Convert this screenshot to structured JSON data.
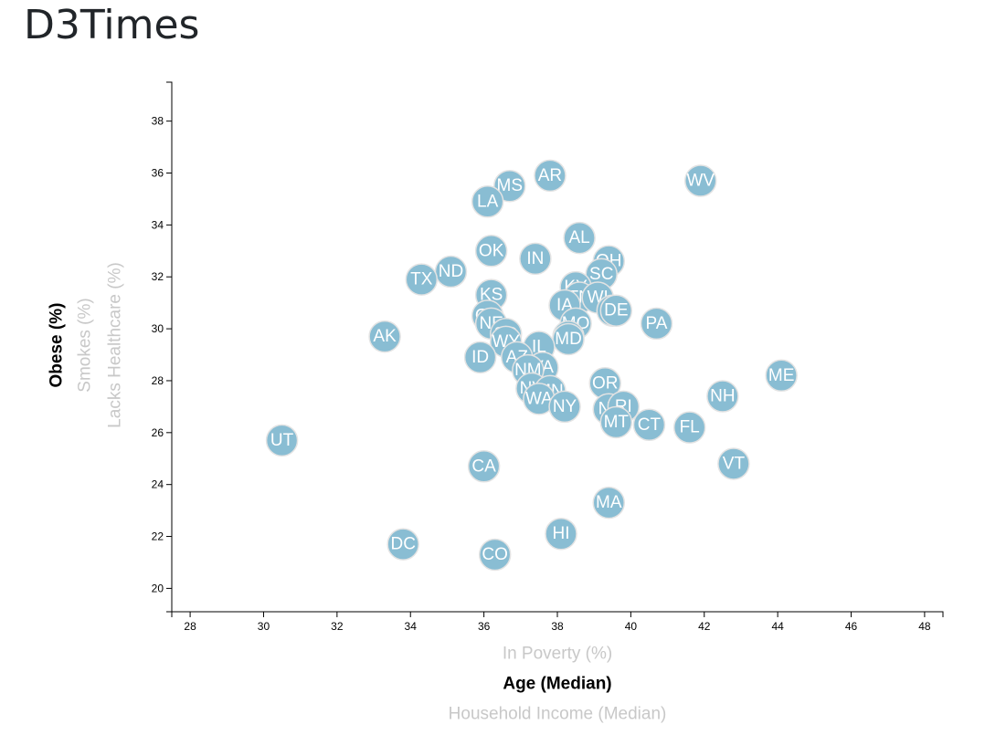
{
  "header": {
    "title": "D3Times"
  },
  "colors": {
    "circle": "#89bdd3",
    "circle_stroke": "#e3e3e3",
    "active_label": "#000000",
    "inactive_label": "#c8c8c8"
  },
  "chart_data": {
    "type": "scatter",
    "title": "",
    "x_labels": [
      {
        "text": "In Poverty (%)",
        "active": false
      },
      {
        "text": "Age (Median)",
        "active": true
      },
      {
        "text": "Household Income (Median)",
        "active": false
      }
    ],
    "y_labels": [
      {
        "text": "Obese (%)",
        "active": true
      },
      {
        "text": "Smokes (%)",
        "active": false
      },
      {
        "text": "Lacks Healthcare (%)",
        "active": false
      }
    ],
    "xlim": [
      27.5,
      48.5
    ],
    "ylim": [
      19.1,
      39.5
    ],
    "x_ticks": [
      28,
      30,
      32,
      34,
      36,
      38,
      40,
      42,
      44,
      46,
      48
    ],
    "y_ticks": [
      20,
      22,
      24,
      26,
      28,
      30,
      32,
      34,
      36,
      38
    ],
    "points": [
      {
        "abbr": "AR",
        "x": 37.8,
        "y": 35.9
      },
      {
        "abbr": "WV",
        "x": 41.9,
        "y": 35.7
      },
      {
        "abbr": "MS",
        "x": 36.7,
        "y": 35.5
      },
      {
        "abbr": "LA",
        "x": 36.1,
        "y": 34.9
      },
      {
        "abbr": "AL",
        "x": 38.6,
        "y": 33.5
      },
      {
        "abbr": "OK",
        "x": 36.2,
        "y": 33.0
      },
      {
        "abbr": "IN",
        "x": 37.4,
        "y": 32.7
      },
      {
        "abbr": "OH",
        "x": 39.4,
        "y": 32.6
      },
      {
        "abbr": "SC",
        "x": 39.2,
        "y": 32.1
      },
      {
        "abbr": "ND",
        "x": 35.1,
        "y": 32.2
      },
      {
        "abbr": "TX",
        "x": 34.3,
        "y": 31.9
      },
      {
        "abbr": "KY",
        "x": 38.5,
        "y": 31.6
      },
      {
        "abbr": "KS",
        "x": 36.2,
        "y": 31.3
      },
      {
        "abbr": "TN",
        "x": 38.6,
        "y": 31.2
      },
      {
        "abbr": "WI",
        "x": 39.1,
        "y": 31.2
      },
      {
        "abbr": "IA",
        "x": 38.2,
        "y": 30.9
      },
      {
        "abbr": "MI",
        "x": 39.5,
        "y": 30.7
      },
      {
        "abbr": "DE",
        "x": 39.6,
        "y": 30.7
      },
      {
        "abbr": "GA",
        "x": 36.1,
        "y": 30.5
      },
      {
        "abbr": "PA",
        "x": 40.7,
        "y": 30.2
      },
      {
        "abbr": "NE",
        "x": 36.2,
        "y": 30.2
      },
      {
        "abbr": "MO",
        "x": 38.5,
        "y": 30.2
      },
      {
        "abbr": "SD",
        "x": 36.6,
        "y": 29.8
      },
      {
        "abbr": "AK",
        "x": 33.3,
        "y": 29.7
      },
      {
        "abbr": "WY",
        "x": 36.6,
        "y": 29.5
      },
      {
        "abbr": "NC",
        "x": 38.3,
        "y": 29.7
      },
      {
        "abbr": "MD",
        "x": 38.3,
        "y": 29.6
      },
      {
        "abbr": "IL",
        "x": 37.5,
        "y": 29.3
      },
      {
        "abbr": "ID",
        "x": 35.9,
        "y": 28.9
      },
      {
        "abbr": "AZ",
        "x": 36.9,
        "y": 28.9
      },
      {
        "abbr": "VA",
        "x": 37.6,
        "y": 28.5
      },
      {
        "abbr": "NM",
        "x": 37.2,
        "y": 28.4
      },
      {
        "abbr": "OR",
        "x": 39.3,
        "y": 27.9
      },
      {
        "abbr": "ME",
        "x": 44.1,
        "y": 28.2
      },
      {
        "abbr": "NV",
        "x": 37.3,
        "y": 27.7
      },
      {
        "abbr": "MN",
        "x": 37.8,
        "y": 27.6
      },
      {
        "abbr": "NH",
        "x": 42.5,
        "y": 27.4
      },
      {
        "abbr": "WA",
        "x": 37.5,
        "y": 27.3
      },
      {
        "abbr": "NY",
        "x": 38.2,
        "y": 27.0
      },
      {
        "abbr": "NJ",
        "x": 39.4,
        "y": 26.9
      },
      {
        "abbr": "RI",
        "x": 39.8,
        "y": 27.0
      },
      {
        "abbr": "MT",
        "x": 39.6,
        "y": 26.4
      },
      {
        "abbr": "CT",
        "x": 40.5,
        "y": 26.3
      },
      {
        "abbr": "FL",
        "x": 41.6,
        "y": 26.2
      },
      {
        "abbr": "UT",
        "x": 30.5,
        "y": 25.7
      },
      {
        "abbr": "VT",
        "x": 42.8,
        "y": 24.8
      },
      {
        "abbr": "CA",
        "x": 36.0,
        "y": 24.7
      },
      {
        "abbr": "MA",
        "x": 39.4,
        "y": 23.3
      },
      {
        "abbr": "HI",
        "x": 38.1,
        "y": 22.1
      },
      {
        "abbr": "DC",
        "x": 33.8,
        "y": 21.7
      },
      {
        "abbr": "CO",
        "x": 36.3,
        "y": 21.3
      }
    ]
  }
}
